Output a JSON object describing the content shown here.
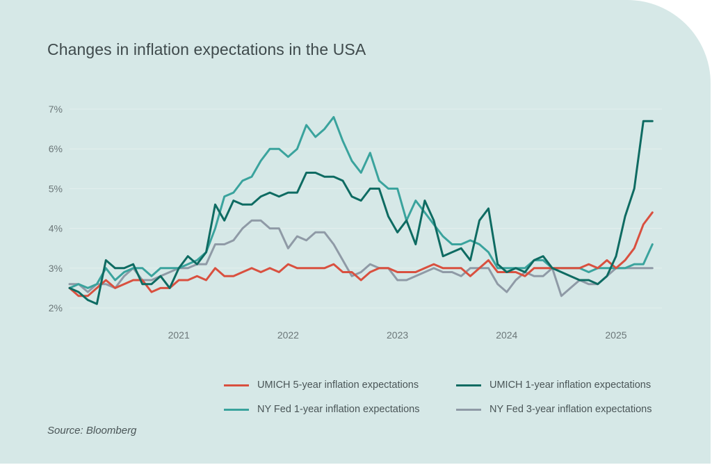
{
  "title": "Changes in inflation expectations in the USA",
  "source": "Source: Bloomberg",
  "chart_data": {
    "type": "line",
    "title": "Changes in inflation expectations in the USA",
    "xlabel": "",
    "ylabel": "",
    "ylim": [
      2,
      7
    ],
    "xlim": [
      2020.0,
      2025.42
    ],
    "x_ticks": [
      "2021",
      "2022",
      "2023",
      "2024",
      "2025"
    ],
    "y_ticks": [
      "2%",
      "3%",
      "4%",
      "5%",
      "6%",
      "7%"
    ],
    "grid": true,
    "legend_position": "bottom",
    "series": [
      {
        "name": "UMICH 5-year inflation expectations",
        "color": "#d9503f",
        "x": [
          2020.0,
          2020.083,
          2020.167,
          2020.25,
          2020.333,
          2020.417,
          2020.5,
          2020.583,
          2020.667,
          2020.75,
          2020.833,
          2020.917,
          2021.0,
          2021.083,
          2021.167,
          2021.25,
          2021.333,
          2021.417,
          2021.5,
          2021.583,
          2021.667,
          2021.75,
          2021.833,
          2021.917,
          2022.0,
          2022.083,
          2022.167,
          2022.25,
          2022.333,
          2022.417,
          2022.5,
          2022.583,
          2022.667,
          2022.75,
          2022.833,
          2022.917,
          2023.0,
          2023.083,
          2023.167,
          2023.25,
          2023.333,
          2023.417,
          2023.5,
          2023.583,
          2023.667,
          2023.75,
          2023.833,
          2023.917,
          2024.0,
          2024.083,
          2024.167,
          2024.25,
          2024.333,
          2024.417,
          2024.5,
          2024.583,
          2024.667,
          2024.75,
          2024.833,
          2024.917,
          2025.0,
          2025.083,
          2025.167,
          2025.25,
          2025.333
        ],
        "y": [
          2.5,
          2.3,
          2.3,
          2.5,
          2.7,
          2.5,
          2.6,
          2.7,
          2.7,
          2.4,
          2.5,
          2.5,
          2.7,
          2.7,
          2.8,
          2.7,
          3.0,
          2.8,
          2.8,
          2.9,
          3.0,
          2.9,
          3.0,
          2.9,
          3.1,
          3.0,
          3.0,
          3.0,
          3.0,
          3.1,
          2.9,
          2.9,
          2.7,
          2.9,
          3.0,
          3.0,
          2.9,
          2.9,
          2.9,
          3.0,
          3.1,
          3.0,
          3.0,
          3.0,
          2.8,
          3.0,
          3.2,
          2.9,
          2.9,
          2.9,
          2.8,
          3.0,
          3.0,
          3.0,
          3.0,
          3.0,
          3.0,
          3.1,
          3.0,
          3.2,
          3.0,
          3.2,
          3.5,
          4.1,
          4.4
        ]
      },
      {
        "name": "UMICH 1-year inflation expectations",
        "color": "#0e6b62",
        "x": [
          2020.0,
          2020.083,
          2020.167,
          2020.25,
          2020.333,
          2020.417,
          2020.5,
          2020.583,
          2020.667,
          2020.75,
          2020.833,
          2020.917,
          2021.0,
          2021.083,
          2021.167,
          2021.25,
          2021.333,
          2021.417,
          2021.5,
          2021.583,
          2021.667,
          2021.75,
          2021.833,
          2021.917,
          2022.0,
          2022.083,
          2022.167,
          2022.25,
          2022.333,
          2022.417,
          2022.5,
          2022.583,
          2022.667,
          2022.75,
          2022.833,
          2022.917,
          2023.0,
          2023.083,
          2023.167,
          2023.25,
          2023.333,
          2023.417,
          2023.5,
          2023.583,
          2023.667,
          2023.75,
          2023.833,
          2023.917,
          2024.0,
          2024.083,
          2024.167,
          2024.25,
          2024.333,
          2024.417,
          2024.5,
          2024.583,
          2024.667,
          2024.75,
          2024.833,
          2024.917,
          2025.0,
          2025.083,
          2025.167,
          2025.25,
          2025.333
        ],
        "y": [
          2.5,
          2.4,
          2.2,
          2.1,
          3.2,
          3.0,
          3.0,
          3.1,
          2.6,
          2.6,
          2.8,
          2.5,
          3.0,
          3.3,
          3.1,
          3.4,
          4.6,
          4.2,
          4.7,
          4.6,
          4.6,
          4.8,
          4.9,
          4.8,
          4.9,
          4.9,
          5.4,
          5.4,
          5.3,
          5.3,
          5.2,
          4.8,
          4.7,
          5.0,
          5.0,
          4.3,
          3.9,
          4.2,
          3.6,
          4.7,
          4.2,
          3.3,
          3.4,
          3.5,
          3.2,
          4.2,
          4.5,
          3.1,
          2.9,
          3.0,
          2.9,
          3.2,
          3.3,
          3.0,
          2.9,
          2.8,
          2.7,
          2.7,
          2.6,
          2.8,
          3.3,
          4.3,
          5.0,
          6.7,
          6.7
        ]
      },
      {
        "name": "NY Fed 1-year inflation expectations",
        "color": "#3aa39d",
        "x": [
          2020.0,
          2020.083,
          2020.167,
          2020.25,
          2020.333,
          2020.417,
          2020.5,
          2020.583,
          2020.667,
          2020.75,
          2020.833,
          2020.917,
          2021.0,
          2021.083,
          2021.167,
          2021.25,
          2021.333,
          2021.417,
          2021.5,
          2021.583,
          2021.667,
          2021.75,
          2021.833,
          2021.917,
          2022.0,
          2022.083,
          2022.167,
          2022.25,
          2022.333,
          2022.417,
          2022.5,
          2022.583,
          2022.667,
          2022.75,
          2022.833,
          2022.917,
          2023.0,
          2023.083,
          2023.167,
          2023.25,
          2023.333,
          2023.417,
          2023.5,
          2023.583,
          2023.667,
          2023.75,
          2023.833,
          2023.917,
          2024.0,
          2024.083,
          2024.167,
          2024.25,
          2024.333,
          2024.417,
          2024.5,
          2024.583,
          2024.667,
          2024.75,
          2024.833,
          2024.917,
          2025.0,
          2025.083,
          2025.167,
          2025.25,
          2025.333
        ],
        "y": [
          2.5,
          2.6,
          2.5,
          2.6,
          3.0,
          2.7,
          2.9,
          3.0,
          3.0,
          2.8,
          3.0,
          3.0,
          3.0,
          3.1,
          3.2,
          3.4,
          4.0,
          4.8,
          4.9,
          5.2,
          5.3,
          5.7,
          6.0,
          6.0,
          5.8,
          6.0,
          6.6,
          6.3,
          6.5,
          6.8,
          6.2,
          5.7,
          5.4,
          5.9,
          5.2,
          5.0,
          5.0,
          4.2,
          4.7,
          4.4,
          4.1,
          3.8,
          3.6,
          3.6,
          3.7,
          3.6,
          3.4,
          3.0,
          3.0,
          3.0,
          3.0,
          3.2,
          3.2,
          3.0,
          3.0,
          3.0,
          3.0,
          2.9,
          3.0,
          3.0,
          3.0,
          3.0,
          3.1,
          3.1,
          3.6
        ]
      },
      {
        "name": "NY Fed 3-year inflation expectations",
        "color": "#8f9aa6",
        "x": [
          2020.0,
          2020.083,
          2020.167,
          2020.25,
          2020.333,
          2020.417,
          2020.5,
          2020.583,
          2020.667,
          2020.75,
          2020.833,
          2020.917,
          2021.0,
          2021.083,
          2021.167,
          2021.25,
          2021.333,
          2021.417,
          2021.5,
          2021.583,
          2021.667,
          2021.75,
          2021.833,
          2021.917,
          2022.0,
          2022.083,
          2022.167,
          2022.25,
          2022.333,
          2022.417,
          2022.5,
          2022.583,
          2022.667,
          2022.75,
          2022.833,
          2022.917,
          2023.0,
          2023.083,
          2023.167,
          2023.25,
          2023.333,
          2023.417,
          2023.5,
          2023.583,
          2023.667,
          2023.75,
          2023.833,
          2023.917,
          2024.0,
          2024.083,
          2024.167,
          2024.25,
          2024.333,
          2024.417,
          2024.5,
          2024.583,
          2024.667,
          2024.75,
          2024.833,
          2024.917,
          2025.0,
          2025.083,
          2025.167,
          2025.25,
          2025.333
        ],
        "y": [
          2.6,
          2.6,
          2.4,
          2.6,
          2.6,
          2.5,
          2.8,
          3.0,
          2.7,
          2.7,
          2.8,
          2.9,
          3.0,
          3.0,
          3.1,
          3.1,
          3.6,
          3.6,
          3.7,
          4.0,
          4.2,
          4.2,
          4.0,
          4.0,
          3.5,
          3.8,
          3.7,
          3.9,
          3.9,
          3.6,
          3.2,
          2.8,
          2.9,
          3.1,
          3.0,
          3.0,
          2.7,
          2.7,
          2.8,
          2.9,
          3.0,
          2.9,
          2.9,
          2.8,
          3.0,
          3.0,
          3.0,
          2.6,
          2.4,
          2.7,
          2.9,
          2.8,
          2.8,
          3.0,
          2.3,
          2.5,
          2.7,
          2.6,
          2.6,
          2.8,
          3.0,
          3.0,
          3.0,
          3.0,
          3.0
        ]
      }
    ]
  }
}
